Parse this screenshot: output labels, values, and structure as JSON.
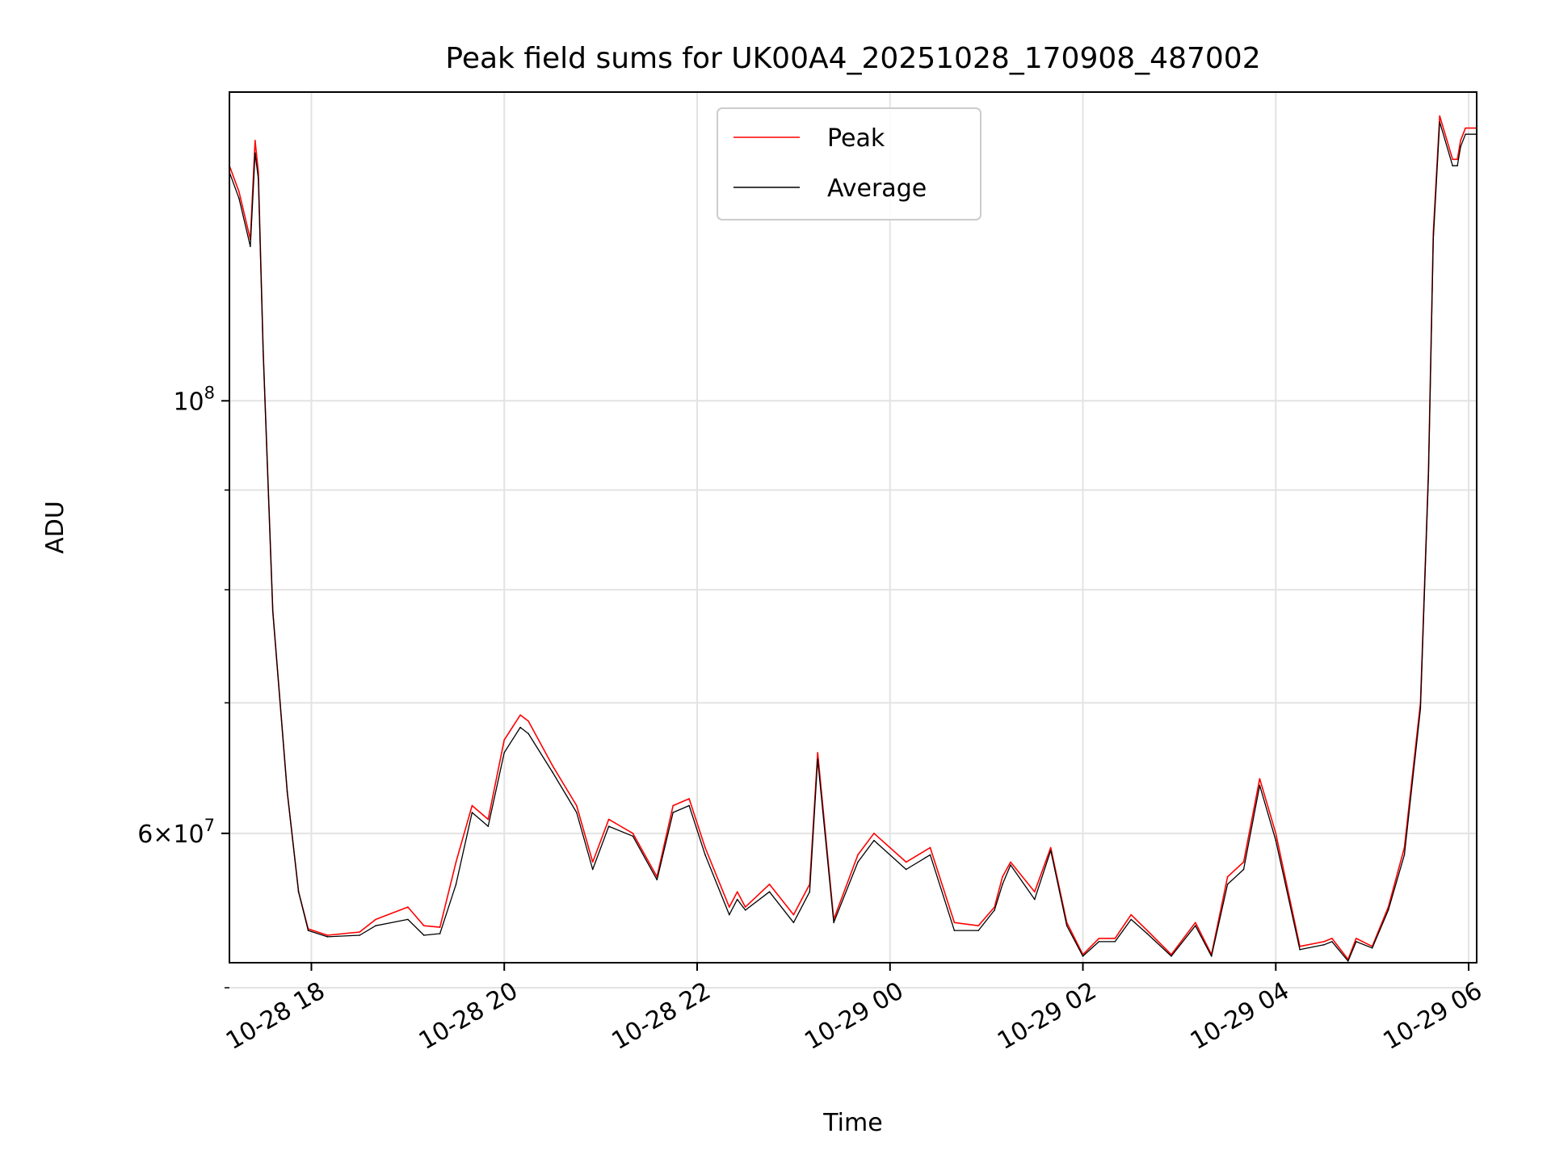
{
  "chart_data": {
    "type": "line",
    "title": "Peak field sums for UK00A4_20251028_170908_487002",
    "xlabel": "Time",
    "ylabel": "ADU",
    "y_scale": "log",
    "grid": true,
    "legend_position": "upper center",
    "xlim": [
      "2025-10-28 17:09",
      "2025-10-29 06:05"
    ],
    "ylim": [
      51500000,
      144000000
    ],
    "x_ticks": [
      "10-28 18",
      "10-28 20",
      "10-28 22",
      "10-29 00",
      "10-29 02",
      "10-29 04",
      "10-29 06"
    ],
    "y_ticks": [
      {
        "value": 100000000,
        "base": "10",
        "exp": "8",
        "mant": ""
      },
      {
        "value": 60000000,
        "base": "10",
        "exp": "7",
        "mant": "6"
      }
    ],
    "y_minor_ticks": [
      50000000,
      70000000,
      80000000,
      90000000
    ],
    "series": [
      {
        "name": "Peak",
        "color": "#ff0000",
        "x": [
          "10-28 17:09",
          "10-28 17:15",
          "10-28 17:22",
          "10-28 17:25",
          "10-28 17:27",
          "10-28 17:30",
          "10-28 17:36",
          "10-28 17:45",
          "10-28 17:52",
          "10-28 17:58",
          "10-28 18:10",
          "10-28 18:30",
          "10-28 18:40",
          "10-28 19:00",
          "10-28 19:10",
          "10-28 19:20",
          "10-28 19:30",
          "10-28 19:40",
          "10-28 19:50",
          "10-28 20:00",
          "10-28 20:10",
          "10-28 20:15",
          "10-28 20:30",
          "10-28 20:45",
          "10-28 20:55",
          "10-28 21:05",
          "10-28 21:20",
          "10-28 21:35",
          "10-28 21:45",
          "10-28 21:55",
          "10-28 22:05",
          "10-28 22:20",
          "10-28 22:25",
          "10-28 22:30",
          "10-28 22:45",
          "10-28 23:00",
          "10-28 23:10",
          "10-28 23:15",
          "10-28 23:25",
          "10-28 23:40",
          "10-28 23:50",
          "10-29 00:10",
          "10-29 00:25",
          "10-29 00:40",
          "10-29 00:55",
          "10-29 01:05",
          "10-29 01:10",
          "10-29 01:15",
          "10-29 01:30",
          "10-29 01:40",
          "10-29 01:50",
          "10-29 02:00",
          "10-29 02:10",
          "10-29 02:20",
          "10-29 02:30",
          "10-29 02:40",
          "10-29 02:55",
          "10-29 03:10",
          "10-29 03:20",
          "10-29 03:30",
          "10-29 03:40",
          "10-29 03:50",
          "10-29 04:00",
          "10-29 04:15",
          "10-29 04:30",
          "10-29 04:35",
          "10-29 04:45",
          "10-29 04:50",
          "10-29 05:00",
          "10-29 05:10",
          "10-29 05:20",
          "10-29 05:30",
          "10-29 05:35",
          "10-29 05:38",
          "10-29 05:42",
          "10-29 05:50",
          "10-29 05:53",
          "10-29 05:55",
          "10-29 05:58",
          "10-29 06:05"
        ],
        "y": [
          132000000,
          128000000,
          121000000,
          136000000,
          131000000,
          106000000,
          78000000,
          63000000,
          56000000,
          53600000,
          53200000,
          53400000,
          54200000,
          55000000,
          53800000,
          53700000,
          58000000,
          62000000,
          61000000,
          67000000,
          69000000,
          68500000,
          65000000,
          62000000,
          58000000,
          61000000,
          60000000,
          57000000,
          62000000,
          62500000,
          59000000,
          55000000,
          56000000,
          55000000,
          56500000,
          54500000,
          56500000,
          66000000,
          54200000,
          58500000,
          60000000,
          58000000,
          59000000,
          54000000,
          53800000,
          55000000,
          57000000,
          58000000,
          56000000,
          59000000,
          54000000,
          52000000,
          53000000,
          53000000,
          54500000,
          53500000,
          52000000,
          54000000,
          52000000,
          57000000,
          58000000,
          64000000,
          60000000,
          52500000,
          52800000,
          53000000,
          51700000,
          53000000,
          52500000,
          55000000,
          59000000,
          70000000,
          92000000,
          122000000,
          140000000,
          133000000,
          133000000,
          136000000,
          138000000,
          138000000
        ]
      },
      {
        "name": "Average",
        "color": "#000000",
        "x": [
          "10-28 17:09",
          "10-28 17:15",
          "10-28 17:22",
          "10-28 17:25",
          "10-28 17:27",
          "10-28 17:30",
          "10-28 17:36",
          "10-28 17:45",
          "10-28 17:52",
          "10-28 17:58",
          "10-28 18:10",
          "10-28 18:30",
          "10-28 18:40",
          "10-28 19:00",
          "10-28 19:10",
          "10-28 19:20",
          "10-28 19:30",
          "10-28 19:40",
          "10-28 19:50",
          "10-28 20:00",
          "10-28 20:10",
          "10-28 20:15",
          "10-28 20:30",
          "10-28 20:45",
          "10-28 20:55",
          "10-28 21:05",
          "10-28 21:20",
          "10-28 21:35",
          "10-28 21:45",
          "10-28 21:55",
          "10-28 22:05",
          "10-28 22:20",
          "10-28 22:25",
          "10-28 22:30",
          "10-28 22:45",
          "10-28 23:00",
          "10-28 23:10",
          "10-28 23:15",
          "10-28 23:25",
          "10-28 23:40",
          "10-28 23:50",
          "10-29 00:10",
          "10-29 00:25",
          "10-29 00:40",
          "10-29 00:55",
          "10-29 01:05",
          "10-29 01:10",
          "10-29 01:15",
          "10-29 01:30",
          "10-29 01:40",
          "10-29 01:50",
          "10-29 02:00",
          "10-29 02:10",
          "10-29 02:20",
          "10-29 02:30",
          "10-29 02:40",
          "10-29 02:55",
          "10-29 03:10",
          "10-29 03:20",
          "10-29 03:30",
          "10-29 03:40",
          "10-29 03:50",
          "10-29 04:00",
          "10-29 04:15",
          "10-29 04:30",
          "10-29 04:35",
          "10-29 04:45",
          "10-29 04:50",
          "10-29 05:00",
          "10-29 05:10",
          "10-29 05:20",
          "10-29 05:30",
          "10-29 05:35",
          "10-29 05:38",
          "10-29 05:42",
          "10-29 05:50",
          "10-29 05:53",
          "10-29 05:55",
          "10-29 05:58",
          "10-29 06:05"
        ],
        "y": [
          131000000,
          127000000,
          120000000,
          134000000,
          130000000,
          106000000,
          78000000,
          63000000,
          56000000,
          53500000,
          53100000,
          53200000,
          53800000,
          54200000,
          53200000,
          53300000,
          56500000,
          61500000,
          60500000,
          66000000,
          68000000,
          67500000,
          64500000,
          61500000,
          57500000,
          60500000,
          59800000,
          56800000,
          61500000,
          62000000,
          58500000,
          54500000,
          55500000,
          54800000,
          56000000,
          54000000,
          56000000,
          65500000,
          54000000,
          58000000,
          59500000,
          57500000,
          58500000,
          53500000,
          53500000,
          54800000,
          56500000,
          57800000,
          55500000,
          58800000,
          53800000,
          51900000,
          52800000,
          52800000,
          54200000,
          53300000,
          51900000,
          53800000,
          51900000,
          56500000,
          57500000,
          63500000,
          59500000,
          52300000,
          52600000,
          52800000,
          51600000,
          52800000,
          52400000,
          54800000,
          58500000,
          69500000,
          91500000,
          121000000,
          139000000,
          132000000,
          132000000,
          135000000,
          137000000,
          137000000
        ]
      }
    ]
  }
}
